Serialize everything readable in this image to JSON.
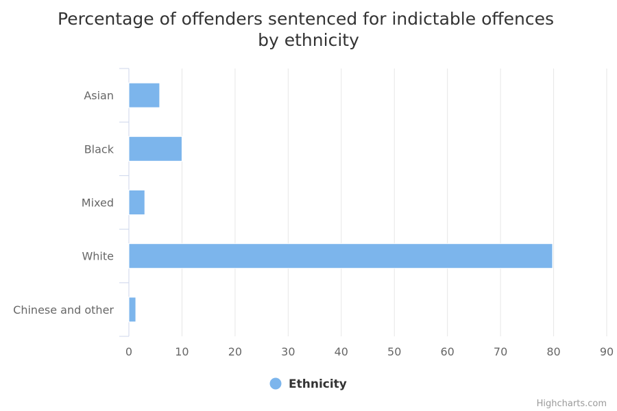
{
  "chart_data": {
    "type": "bar",
    "orientation": "horizontal",
    "title": "Percentage of offenders sentenced for indictable offences by ethnicity",
    "title_lines": [
      "Percentage of offenders sentenced for indictable offences",
      "by ethnicity"
    ],
    "categories": [
      "Asian",
      "Black",
      "Mixed",
      "White",
      "Chinese and other"
    ],
    "series": [
      {
        "name": "Ethnicity",
        "values": [
          5.8,
          10.0,
          3.0,
          79.8,
          1.3
        ]
      }
    ],
    "xlim": [
      0,
      90
    ],
    "ticks": [
      0,
      10,
      20,
      30,
      40,
      50,
      60,
      70,
      80,
      90
    ],
    "grid": true,
    "legend": "bottom-center",
    "color": "#7cb5ec"
  },
  "credits": "Highcharts.com"
}
